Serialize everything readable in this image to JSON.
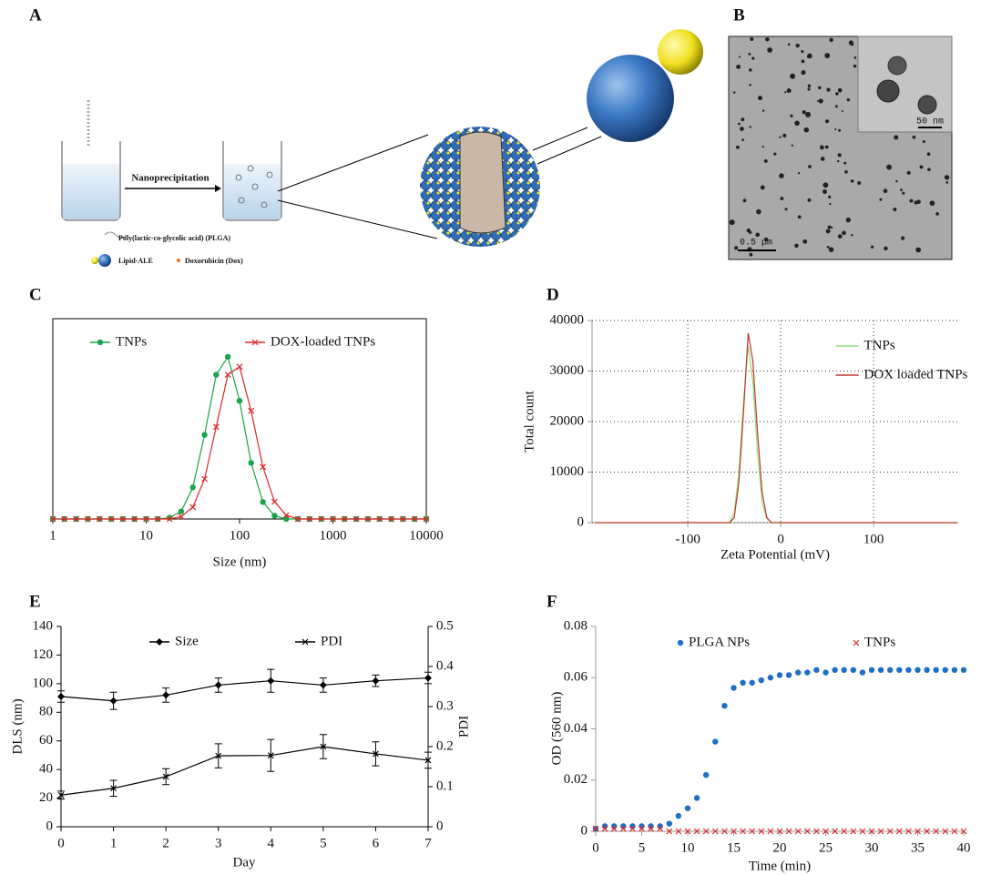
{
  "panels": {
    "A": {
      "label": "A",
      "step": "Nanoprecipitation",
      "legend": [
        "Poly(lactic-co-glycolic acid) (PLGA)",
        "Lipid-ALE",
        "Doxorubicin (Dox)"
      ]
    },
    "B": {
      "label": "B",
      "inset_scale": "50 nm",
      "scale": "0.5 µm"
    }
  },
  "chart_data": [
    {
      "type": "line",
      "label": "C",
      "xlabel": "Size (nm)",
      "xscale": "log",
      "xlim": [
        1,
        10000
      ],
      "xticks": [
        1,
        10,
        100,
        1000,
        10000
      ],
      "ylim": [
        0,
        100
      ],
      "grid": false,
      "legend": "top",
      "x": [
        1,
        1.33,
        1.78,
        2.37,
        3.16,
        4.22,
        5.62,
        7.5,
        10,
        13.3,
        17.8,
        23.7,
        31.6,
        42.2,
        56.2,
        75,
        100,
        133,
        178,
        237,
        316,
        422,
        562,
        750,
        1000,
        1330,
        1780,
        2370,
        3160,
        4220,
        5620,
        7500,
        10000
      ],
      "series": [
        {
          "name": "TNPs",
          "color": "#1aa34a",
          "marker": "circle",
          "values": [
            0,
            0,
            0,
            0,
            0,
            0,
            0,
            0,
            0,
            0,
            0.6,
            3.8,
            15.8,
            42,
            72,
            81,
            59,
            28,
            8.5,
            1.6,
            0,
            0,
            0,
            0,
            0,
            0,
            0,
            0,
            0,
            0,
            0,
            0,
            0
          ]
        },
        {
          "name": "DOX-loaded TNPs",
          "color": "#e0262b",
          "marker": "x",
          "values": [
            0,
            0,
            0,
            0,
            0,
            0,
            0,
            0,
            0,
            0,
            0,
            1.2,
            5.9,
            20,
            46,
            72,
            76,
            54,
            26,
            8.6,
            1.9,
            0,
            0,
            0,
            0,
            0,
            0,
            0,
            0,
            0,
            0,
            0,
            0
          ]
        }
      ]
    },
    {
      "type": "line",
      "label": "D",
      "xlabel": "Zeta Potential (mV)",
      "ylabel": "Total count",
      "xlim": [
        -203,
        191
      ],
      "xticks": [
        -100,
        0,
        100
      ],
      "ylim": [
        0,
        40000
      ],
      "yticks": [
        0,
        10000,
        20000,
        30000,
        40000
      ],
      "grid": true,
      "legend": "right",
      "x": [
        -200,
        -55,
        -50,
        -45,
        -40,
        -35,
        -30,
        -25,
        -20,
        -15,
        -10,
        -5,
        190
      ],
      "series": [
        {
          "name": "TNPs",
          "color": "#8fe07a",
          "values": [
            0,
            0,
            2000,
            10000,
            24000,
            35000,
            28000,
            14000,
            4000,
            800,
            0,
            0,
            0
          ]
        },
        {
          "name": "DOX loaded TNPs",
          "color": "#c0392b",
          "values": [
            0,
            0,
            1000,
            8000,
            22000,
            37500,
            32000,
            18000,
            6000,
            1000,
            0,
            0,
            0
          ]
        }
      ]
    },
    {
      "type": "line",
      "label": "E",
      "xlabel": "Day",
      "ylabel": "DLS (nm)",
      "y2label": "PDI",
      "xlim": [
        0,
        7
      ],
      "xticks": [
        0,
        1,
        2,
        3,
        4,
        5,
        6,
        7
      ],
      "ylim": [
        0,
        140
      ],
      "yticks": [
        0,
        20,
        40,
        60,
        80,
        100,
        120,
        140
      ],
      "y2lim": [
        0,
        0.5
      ],
      "y2ticks": [
        0,
        0.1,
        0.2,
        0.3,
        0.4,
        0.5
      ],
      "grid": false,
      "legend": "top",
      "x": [
        0,
        1,
        2,
        3,
        4,
        5,
        6,
        7
      ],
      "series": [
        {
          "name": "Size",
          "color": "#000000",
          "marker": "diamond",
          "values": [
            91,
            88,
            92,
            99,
            102,
            99,
            102,
            104
          ],
          "errors": [
            4,
            6,
            5,
            5,
            8,
            5,
            4,
            4
          ]
        },
        {
          "name": "PDI",
          "color": "#000000",
          "marker": "x",
          "axis": "y2",
          "values": [
            0.079,
            0.096,
            0.125,
            0.177,
            0.178,
            0.2,
            0.182,
            0.166
          ],
          "errors": [
            0.01,
            0.02,
            0.02,
            0.03,
            0.04,
            0.03,
            0.03,
            0.02
          ]
        }
      ]
    },
    {
      "type": "scatter",
      "label": "F",
      "xlabel": "Time (min)",
      "ylabel": "OD (560 nm)",
      "xlim": [
        0,
        40
      ],
      "xticks": [
        0,
        5,
        10,
        15,
        20,
        25,
        30,
        35,
        40
      ],
      "ylim": [
        0,
        0.08
      ],
      "yticks": [
        0,
        0.02,
        0.04,
        0.06,
        0.08
      ],
      "grid": false,
      "legend": "top",
      "x": [
        0,
        1,
        2,
        3,
        4,
        5,
        6,
        7,
        8,
        9,
        10,
        11,
        12,
        13,
        14,
        15,
        16,
        17,
        18,
        19,
        20,
        21,
        22,
        23,
        24,
        25,
        26,
        27,
        28,
        29,
        30,
        31,
        32,
        33,
        34,
        35,
        36,
        37,
        38,
        39,
        40
      ],
      "series": [
        {
          "name": "PLGA NPs",
          "color": "#1f6fc5",
          "marker": "circle",
          "values": [
            0.001,
            0.002,
            0.002,
            0.002,
            0.002,
            0.002,
            0.002,
            0.002,
            0.003,
            0.006,
            0.009,
            0.013,
            0.022,
            0.035,
            0.049,
            0.056,
            0.058,
            0.058,
            0.059,
            0.06,
            0.061,
            0.061,
            0.062,
            0.062,
            0.063,
            0.062,
            0.063,
            0.063,
            0.063,
            0.062,
            0.063,
            0.063,
            0.063,
            0.063,
            0.063,
            0.063,
            0.063,
            0.063,
            0.063,
            0.063,
            0.063
          ]
        },
        {
          "name": "TNPs",
          "color": "#e0262b",
          "marker": "x",
          "values": [
            0.001,
            0.001,
            0.001,
            0.001,
            0.001,
            0.001,
            0.001,
            0.001,
            0,
            0,
            0,
            0,
            0,
            0,
            0,
            0,
            0,
            0,
            0,
            0,
            0,
            0,
            0,
            0,
            0,
            0,
            0,
            0,
            0,
            0,
            0,
            0,
            0,
            0,
            0,
            0,
            0,
            0,
            0,
            0,
            0
          ]
        }
      ]
    }
  ]
}
